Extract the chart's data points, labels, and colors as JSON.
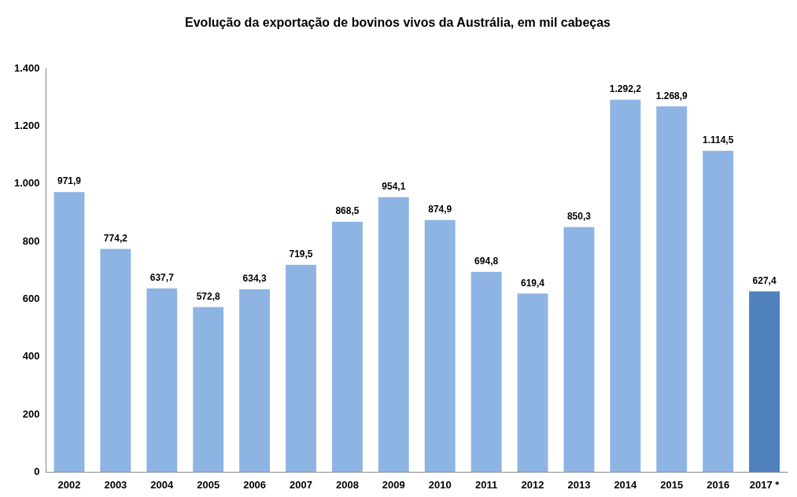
{
  "chart_data": {
    "type": "bar",
    "title": "Evolução da exportação de bovinos vivos da Austrália, em mil cabeças",
    "categories": [
      "2002",
      "2003",
      "2004",
      "2005",
      "2006",
      "2007",
      "2008",
      "2009",
      "2010",
      "2011",
      "2012",
      "2013",
      "2014",
      "2015",
      "2016",
      "2017 *"
    ],
    "values": [
      971.9,
      774.2,
      637.7,
      572.8,
      634.3,
      719.5,
      868.5,
      954.1,
      874.9,
      694.8,
      619.4,
      850.3,
      1292.2,
      1268.9,
      1114.5,
      627.4
    ],
    "colors": [
      "#8eb4e3",
      "#8eb4e3",
      "#8eb4e3",
      "#8eb4e3",
      "#8eb4e3",
      "#8eb4e3",
      "#8eb4e3",
      "#8eb4e3",
      "#8eb4e3",
      "#8eb4e3",
      "#8eb4e3",
      "#8eb4e3",
      "#8eb4e3",
      "#8eb4e3",
      "#8eb4e3",
      "#4f81bd"
    ],
    "value_labels": [
      "971,9",
      "774,2",
      "637,7",
      "572,8",
      "634,3",
      "719,5",
      "868,5",
      "954,1",
      "874,9",
      "694,8",
      "619,4",
      "850,3",
      "1.292,2",
      "1.268,9",
      "1.114,5",
      "627,4"
    ],
    "ylim": [
      0,
      1400
    ],
    "yticks": [
      0,
      200,
      400,
      600,
      800,
      {
        "value": 1000,
        "label": "1.000"
      },
      {
        "value": 1200,
        "label": "1.200"
      },
      {
        "value": 1400,
        "label": "1.400"
      }
    ],
    "grid": false,
    "legend": false
  }
}
